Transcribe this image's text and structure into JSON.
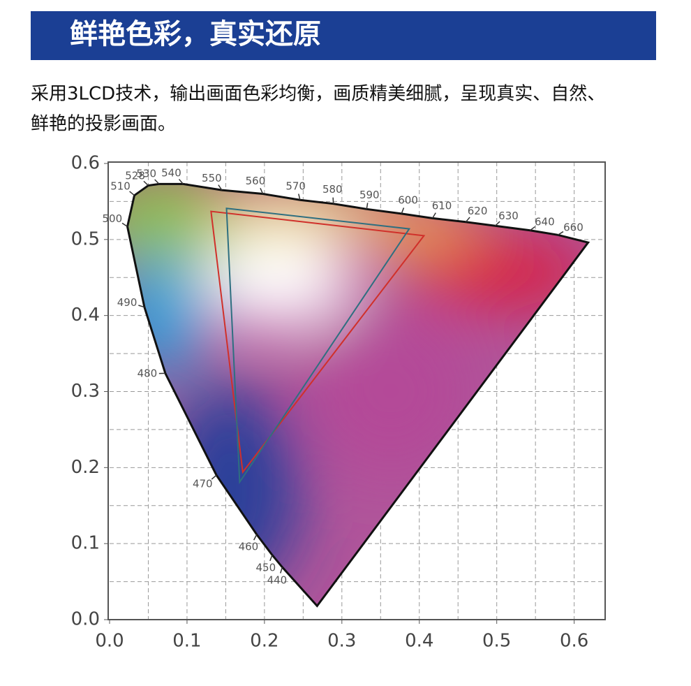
{
  "header": {
    "title": "鲜艳色彩，真实还原"
  },
  "description": {
    "lines": [
      "采用3LCD技术，输出画面色彩均衡，画质精美细腻，呈现真实、自然、",
      "鲜艳的投影画面。"
    ]
  },
  "chart_data": {
    "type": "chromaticity",
    "xlim": [
      0,
      0.64
    ],
    "ylim": [
      0,
      0.6
    ],
    "xticks": [
      {
        "value": 0,
        "label": "0.0"
      },
      0.1,
      0.2,
      0.3,
      0.4,
      0.5,
      0.6
    ],
    "yticks": [
      {
        "value": 0,
        "label": "0.0"
      },
      0.1,
      0.2,
      0.3,
      0.4,
      0.5,
      0.6
    ],
    "xgrid": [
      0.05,
      0.1,
      0.15,
      0.2,
      0.25,
      0.3,
      0.35,
      0.4,
      0.45,
      0.5,
      0.55,
      0.6
    ],
    "ygrid": [
      0.05,
      0.1,
      0.15,
      0.2,
      0.25,
      0.3,
      0.35,
      0.4,
      0.45,
      0.5,
      0.55
    ],
    "grid": true,
    "locus": {
      "labels": [
        null,
        "440",
        "450",
        "460",
        "470",
        "480",
        "490",
        "500",
        "510",
        "528",
        "530",
        "540",
        "550",
        "560",
        "570",
        "580",
        "590",
        "600",
        "610",
        "620",
        "630",
        "640",
        "660",
        null
      ],
      "x": [
        0.268,
        0.223,
        0.21,
        0.19,
        0.138,
        0.072,
        0.045,
        0.023,
        0.032,
        0.05,
        0.064,
        0.095,
        0.145,
        0.198,
        0.246,
        0.289,
        0.332,
        0.377,
        0.417,
        0.46,
        0.498,
        0.543,
        0.579,
        0.618
      ],
      "y": [
        0.018,
        0.069,
        0.085,
        0.112,
        0.19,
        0.324,
        0.411,
        0.517,
        0.558,
        0.571,
        0.573,
        0.573,
        0.565,
        0.56,
        0.552,
        0.547,
        0.54,
        0.534,
        0.528,
        0.523,
        0.518,
        0.512,
        0.506,
        0.496
      ]
    },
    "series": [
      {
        "color": "#d0302a",
        "x": [
          0.131,
          0.406,
          0.172
        ],
        "y": [
          0.537,
          0.505,
          0.194
        ]
      },
      {
        "color": "#2e6f80",
        "x": [
          0.151,
          0.387,
          0.168
        ],
        "y": [
          0.541,
          0.514,
          0.181
        ]
      }
    ]
  }
}
